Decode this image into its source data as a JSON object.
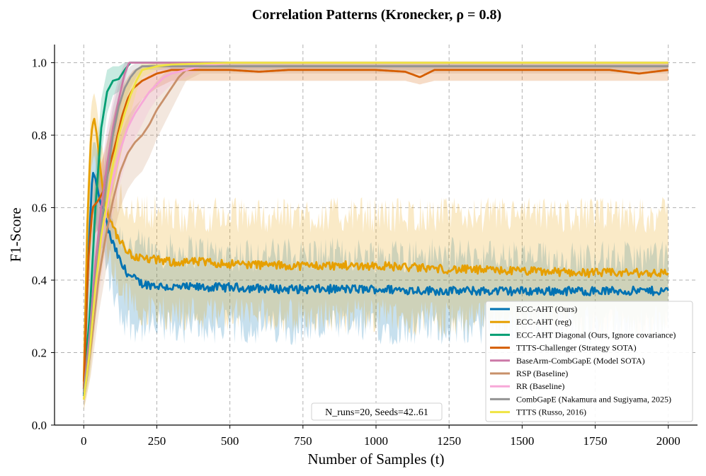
{
  "chart_data": {
    "type": "line",
    "title": "Correlation Patterns (Kronecker, ρ = 0.8)",
    "xlabel": "Number of Samples (t)",
    "ylabel": "F1-Score",
    "xlim": [
      -100,
      2100
    ],
    "ylim": [
      0.0,
      1.05
    ],
    "xticks": [
      0,
      250,
      500,
      750,
      1000,
      1250,
      1500,
      1750,
      2000
    ],
    "yticks": [
      0.0,
      0.2,
      0.4,
      0.6,
      0.8,
      1.0
    ],
    "ytick_labels": [
      "0.0",
      "0.2",
      "0.4",
      "0.6",
      "0.8",
      "1.0"
    ],
    "grid": true,
    "legend_position": "lower-right",
    "annotation": "N_runs=20, Seeds=42..61",
    "series": [
      {
        "name": "ECC-AHT (Ours)",
        "color": "#0072b2",
        "x": [
          0,
          15,
          30,
          40,
          55,
          70,
          90,
          110,
          130,
          160,
          200,
          250,
          300,
          400,
          500,
          700,
          1000,
          1250,
          1500,
          1750,
          2000
        ],
        "y": [
          0.08,
          0.45,
          0.7,
          0.68,
          0.62,
          0.58,
          0.52,
          0.48,
          0.44,
          0.41,
          0.39,
          0.385,
          0.38,
          0.38,
          0.38,
          0.375,
          0.375,
          0.37,
          0.37,
          0.37,
          0.37
        ],
        "band_upper": [
          0.12,
          0.58,
          0.78,
          0.78,
          0.72,
          0.66,
          0.6,
          0.55,
          0.52,
          0.5,
          0.49,
          0.48,
          0.48,
          0.48,
          0.47,
          0.47,
          0.47,
          0.47,
          0.46,
          0.46,
          0.46
        ],
        "band_lower": [
          0.04,
          0.32,
          0.6,
          0.56,
          0.5,
          0.46,
          0.4,
          0.34,
          0.3,
          0.28,
          0.27,
          0.27,
          0.27,
          0.27,
          0.27,
          0.27,
          0.27,
          0.27,
          0.27,
          0.27,
          0.27
        ]
      },
      {
        "name": "ECC-AHT (reg)",
        "color": "#e69f00",
        "x": [
          0,
          12,
          25,
          35,
          45,
          55,
          70,
          90,
          110,
          130,
          160,
          200,
          250,
          300,
          400,
          500,
          700,
          1000,
          1250,
          1500,
          1750,
          2000
        ],
        "y": [
          0.12,
          0.55,
          0.8,
          0.85,
          0.8,
          0.72,
          0.62,
          0.57,
          0.53,
          0.5,
          0.47,
          0.46,
          0.455,
          0.45,
          0.45,
          0.445,
          0.44,
          0.44,
          0.43,
          0.425,
          0.42,
          0.42
        ],
        "band_upper": [
          0.16,
          0.65,
          0.88,
          0.92,
          0.88,
          0.8,
          0.72,
          0.66,
          0.63,
          0.62,
          0.6,
          0.59,
          0.59,
          0.58,
          0.58,
          0.58,
          0.58,
          0.58,
          0.58,
          0.58,
          0.58,
          0.58
        ],
        "band_lower": [
          0.08,
          0.45,
          0.7,
          0.75,
          0.7,
          0.62,
          0.52,
          0.46,
          0.4,
          0.37,
          0.34,
          0.32,
          0.31,
          0.31,
          0.31,
          0.31,
          0.3,
          0.3,
          0.29,
          0.29,
          0.28,
          0.28
        ]
      },
      {
        "name": "ECC-AHT Diagonal (Ours, Ignore covariance)",
        "color": "#009e73",
        "x": [
          0,
          20,
          40,
          60,
          80,
          100,
          120,
          140,
          160,
          200,
          300,
          500,
          1000,
          1500,
          2000
        ],
        "y": [
          0.1,
          0.3,
          0.6,
          0.82,
          0.92,
          0.95,
          0.955,
          0.98,
          1.0,
          1.0,
          1.0,
          1.0,
          1.0,
          1.0,
          1.0
        ],
        "band_upper": [
          0.14,
          0.4,
          0.7,
          0.9,
          0.98,
          0.99,
          0.99,
          1.0,
          1.0,
          1.0,
          1.0,
          1.0,
          1.0,
          1.0,
          1.0
        ],
        "band_lower": [
          0.06,
          0.2,
          0.5,
          0.74,
          0.86,
          0.91,
          0.92,
          0.96,
          1.0,
          1.0,
          1.0,
          1.0,
          1.0,
          1.0,
          1.0
        ]
      },
      {
        "name": "TTTS-Challenger (Strategy SOTA)",
        "color": "#d55e00",
        "x": [
          0,
          15,
          30,
          50,
          70,
          90,
          110,
          130,
          150,
          170,
          200,
          250,
          300,
          400,
          500,
          600,
          700,
          800,
          1000,
          1100,
          1150,
          1200,
          1300,
          1500,
          1700,
          1800,
          1900,
          2000
        ],
        "y": [
          0.1,
          0.45,
          0.6,
          0.62,
          0.65,
          0.72,
          0.78,
          0.85,
          0.9,
          0.93,
          0.95,
          0.97,
          0.98,
          0.98,
          0.98,
          0.975,
          0.98,
          0.98,
          0.98,
          0.975,
          0.96,
          0.98,
          0.98,
          0.98,
          0.98,
          0.98,
          0.97,
          0.98
        ],
        "band_upper": [
          0.14,
          0.55,
          0.68,
          0.7,
          0.75,
          0.82,
          0.88,
          0.93,
          0.96,
          0.98,
          0.99,
          1.0,
          1.0,
          1.0,
          1.0,
          1.0,
          1.0,
          1.0,
          1.0,
          1.0,
          1.0,
          1.0,
          1.0,
          1.0,
          1.0,
          1.0,
          1.0,
          1.0
        ],
        "band_lower": [
          0.06,
          0.35,
          0.52,
          0.54,
          0.56,
          0.62,
          0.68,
          0.76,
          0.82,
          0.86,
          0.9,
          0.93,
          0.95,
          0.95,
          0.95,
          0.95,
          0.95,
          0.95,
          0.95,
          0.95,
          0.94,
          0.95,
          0.95,
          0.95,
          0.95,
          0.95,
          0.95,
          0.95
        ]
      },
      {
        "name": "BaseArm-CombGapE (Model SOTA)",
        "color": "#cc79a7",
        "x": [
          0,
          20,
          40,
          60,
          80,
          100,
          120,
          140,
          155,
          200,
          500,
          1000,
          1500,
          2000
        ],
        "y": [
          0.09,
          0.25,
          0.45,
          0.6,
          0.72,
          0.82,
          0.9,
          0.97,
          1.0,
          1.0,
          1.0,
          1.0,
          1.0,
          1.0
        ],
        "band_upper": [
          0.12,
          0.32,
          0.55,
          0.7,
          0.82,
          0.9,
          0.96,
          1.0,
          1.0,
          1.0,
          1.0,
          1.0,
          1.0,
          1.0
        ],
        "band_lower": [
          0.06,
          0.18,
          0.35,
          0.5,
          0.62,
          0.74,
          0.84,
          0.94,
          1.0,
          1.0,
          1.0,
          1.0,
          1.0,
          1.0
        ]
      },
      {
        "name": "RSP (Baseline)",
        "color": "#c8906a",
        "x": [
          0,
          25,
          50,
          75,
          100,
          125,
          150,
          175,
          200,
          225,
          250,
          275,
          300,
          325,
          350,
          400,
          500,
          1000,
          1500,
          2000
        ],
        "y": [
          0.07,
          0.22,
          0.4,
          0.52,
          0.62,
          0.7,
          0.75,
          0.78,
          0.8,
          0.83,
          0.87,
          0.9,
          0.93,
          0.96,
          0.98,
          0.99,
          0.99,
          0.99,
          0.99,
          0.99
        ],
        "band_upper": [
          0.1,
          0.3,
          0.5,
          0.62,
          0.72,
          0.8,
          0.85,
          0.88,
          0.9,
          0.92,
          0.95,
          0.97,
          0.99,
          1.0,
          1.0,
          1.0,
          1.0,
          1.0,
          1.0,
          1.0
        ],
        "band_lower": [
          0.04,
          0.14,
          0.3,
          0.42,
          0.52,
          0.6,
          0.65,
          0.68,
          0.7,
          0.74,
          0.79,
          0.83,
          0.87,
          0.91,
          0.95,
          0.97,
          0.97,
          0.97,
          0.97,
          0.97
        ]
      },
      {
        "name": "RR (Baseline)",
        "color": "#f7a8d8",
        "x": [
          0,
          25,
          50,
          75,
          100,
          125,
          150,
          175,
          200,
          225,
          250,
          275,
          300,
          350,
          400,
          500,
          1000,
          2000
        ],
        "y": [
          0.07,
          0.25,
          0.45,
          0.58,
          0.68,
          0.76,
          0.82,
          0.86,
          0.89,
          0.92,
          0.94,
          0.96,
          0.97,
          0.98,
          0.99,
          1.0,
          1.0,
          1.0
        ],
        "band_upper": [
          0.1,
          0.33,
          0.55,
          0.68,
          0.77,
          0.85,
          0.9,
          0.93,
          0.95,
          0.97,
          0.98,
          0.99,
          1.0,
          1.0,
          1.0,
          1.0,
          1.0,
          1.0
        ],
        "band_lower": [
          0.04,
          0.17,
          0.35,
          0.48,
          0.58,
          0.67,
          0.74,
          0.79,
          0.83,
          0.87,
          0.9,
          0.92,
          0.94,
          0.96,
          0.98,
          1.0,
          1.0,
          1.0
        ]
      },
      {
        "name": "CombGapE (Nakamura and Sugiyama, 2025)",
        "color": "#949494",
        "x": [
          0,
          20,
          40,
          60,
          80,
          100,
          120,
          140,
          160,
          180,
          200,
          300,
          500,
          700,
          1000,
          1500,
          2000
        ],
        "y": [
          0.09,
          0.22,
          0.4,
          0.55,
          0.68,
          0.8,
          0.88,
          0.93,
          0.96,
          0.98,
          0.99,
          0.99,
          0.99,
          0.99,
          0.99,
          0.99,
          0.99
        ],
        "band_upper": [
          0.12,
          0.3,
          0.5,
          0.65,
          0.78,
          0.88,
          0.94,
          0.97,
          0.99,
          1.0,
          1.0,
          1.0,
          1.0,
          1.0,
          1.0,
          1.0,
          1.0
        ],
        "band_lower": [
          0.06,
          0.14,
          0.3,
          0.45,
          0.58,
          0.72,
          0.82,
          0.89,
          0.93,
          0.96,
          0.98,
          0.98,
          0.98,
          0.98,
          0.98,
          0.98,
          0.98
        ]
      },
      {
        "name": "TTTS (Russo, 2016)",
        "color": "#f0e442",
        "x": [
          0,
          20,
          40,
          60,
          80,
          100,
          120,
          140,
          160,
          180,
          200,
          250,
          300,
          500,
          700,
          1000,
          1500,
          2000
        ],
        "y": [
          0.07,
          0.2,
          0.38,
          0.52,
          0.62,
          0.72,
          0.8,
          0.86,
          0.91,
          0.95,
          0.98,
          0.99,
          0.995,
          1.0,
          1.0,
          1.0,
          1.0,
          1.0
        ],
        "band_upper": [
          0.1,
          0.28,
          0.48,
          0.62,
          0.72,
          0.81,
          0.88,
          0.93,
          0.96,
          0.98,
          1.0,
          1.0,
          1.0,
          1.0,
          1.0,
          1.0,
          1.0,
          1.0
        ],
        "band_lower": [
          0.04,
          0.12,
          0.28,
          0.42,
          0.52,
          0.63,
          0.72,
          0.79,
          0.86,
          0.92,
          0.96,
          0.98,
          0.99,
          1.0,
          1.0,
          1.0,
          1.0,
          1.0
        ]
      }
    ]
  }
}
